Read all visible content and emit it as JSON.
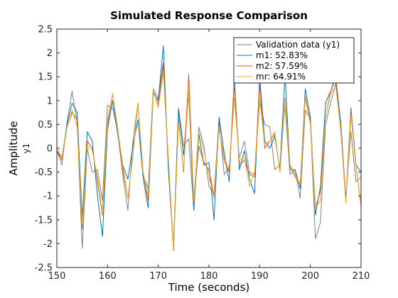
{
  "chart_data": {
    "type": "line",
    "title": "Simulated Response Comparison",
    "xlabel": "Time (seconds)",
    "ylabel": "Amplitude",
    "ylabel_output": "y1",
    "xlim": [
      150,
      210
    ],
    "ylim": [
      -2.5,
      2.5
    ],
    "xticks": [
      150,
      160,
      170,
      180,
      190,
      200,
      210
    ],
    "xtick_labels": [
      "150",
      "160",
      "170",
      "180",
      "190",
      "200",
      "210"
    ],
    "yticks": [
      -2.5,
      -2,
      -1.5,
      -1,
      -0.5,
      0,
      0.5,
      1,
      1.5,
      2,
      2.5
    ],
    "ytick_labels": [
      "-2.5",
      "-2",
      "-1.5",
      "-1",
      "-0.5",
      "0",
      "0.5",
      "1",
      "1.5",
      "2",
      "2.5"
    ],
    "grid": false,
    "legend_position": "top-right",
    "x": [
      150,
      151,
      152,
      153,
      154,
      155,
      156,
      157,
      158,
      159,
      160,
      161,
      162,
      163,
      164,
      165,
      166,
      167,
      168,
      169,
      170,
      171,
      172,
      173,
      174,
      175,
      176,
      177,
      178,
      179,
      180,
      181,
      182,
      183,
      184,
      185,
      186,
      187,
      188,
      189,
      190,
      191,
      192,
      193,
      194,
      195,
      196,
      197,
      198,
      199,
      200,
      201,
      202,
      203,
      204,
      205,
      206,
      207,
      208,
      209,
      210
    ],
    "series": [
      {
        "name": "Validation data (y1)",
        "color": "#7f7f7f",
        "values": [
          -0.05,
          -0.35,
          0.55,
          1.2,
          0.55,
          -2.1,
          0.0,
          -0.5,
          -0.45,
          -1.1,
          0.9,
          0.85,
          0.35,
          -0.55,
          -1.3,
          0.15,
          0.95,
          -0.55,
          -0.85,
          1.25,
          1.05,
          1.8,
          -0.4,
          -2.05,
          0.85,
          0.05,
          0.2,
          -1.25,
          0.45,
          0.05,
          -0.8,
          -0.95,
          0.6,
          -0.55,
          -0.4,
          1.05,
          -0.2,
          0.15,
          -0.5,
          -0.55,
          0.95,
          0.5,
          0.45,
          -0.45,
          -0.35,
          0.9,
          -0.55,
          -0.45,
          -1.05,
          0.8,
          0.6,
          -1.9,
          -1.55,
          0.5,
          0.95,
          1.35,
          0.55,
          -1.05,
          0.35,
          -0.7,
          -0.6
        ]
      },
      {
        "name": "m1: 52.83%",
        "color": "#0072bd",
        "values": [
          -0.05,
          -0.2,
          0.5,
          0.95,
          0.75,
          -1.45,
          0.35,
          0.15,
          -1.0,
          -1.85,
          0.4,
          1.0,
          0.3,
          -0.35,
          -0.65,
          0.05,
          0.6,
          -0.6,
          -1.25,
          1.15,
          1.0,
          2.15,
          -0.45,
          -2.1,
          0.8,
          -0.15,
          1.15,
          -1.3,
          0.3,
          -0.35,
          -0.3,
          -1.5,
          0.65,
          -0.1,
          -0.7,
          1.5,
          -0.45,
          -0.05,
          -0.65,
          -0.95,
          1.5,
          0.15,
          0.0,
          0.25,
          -0.45,
          1.55,
          -0.45,
          -0.45,
          -0.85,
          1.25,
          0.65,
          -1.4,
          -0.8,
          0.95,
          1.2,
          1.5,
          0.5,
          -1.15,
          0.85,
          -0.35,
          -0.5
        ]
      },
      {
        "name": "m2: 57.59%",
        "color": "#d95319",
        "values": [
          -0.05,
          -0.25,
          0.45,
          0.75,
          0.6,
          -1.7,
          0.15,
          0.0,
          -0.7,
          -1.4,
          0.5,
          1.15,
          0.4,
          -0.45,
          -1.05,
          -0.15,
          0.95,
          -0.5,
          -1.1,
          1.25,
          0.9,
          1.75,
          -0.25,
          -2.15,
          0.6,
          -0.5,
          1.55,
          -1.1,
          0.05,
          -0.3,
          -0.45,
          -1.0,
          0.45,
          -0.25,
          -0.5,
          1.35,
          -0.35,
          -0.25,
          -0.55,
          -0.6,
          1.35,
          0.0,
          0.15,
          0.3,
          -0.5,
          1.05,
          -0.35,
          -0.6,
          -0.75,
          1.1,
          0.55,
          -1.25,
          -0.9,
          0.65,
          1.2,
          1.45,
          0.35,
          -1.1,
          0.8,
          -0.4,
          -1.2
        ]
      },
      {
        "name": "mr: 64.91%",
        "color": "#edb120",
        "values": [
          0.0,
          -0.2,
          0.45,
          0.8,
          0.45,
          -1.6,
          0.05,
          -0.05,
          -0.6,
          -1.35,
          0.6,
          1.15,
          0.4,
          -0.35,
          -1.05,
          -0.15,
          0.95,
          -0.5,
          -1.0,
          1.25,
          0.85,
          1.6,
          -0.2,
          -2.1,
          0.55,
          -0.45,
          1.2,
          -1.1,
          0.35,
          -0.05,
          -0.6,
          -1.05,
          0.45,
          -0.2,
          -0.45,
          1.05,
          -0.25,
          -0.2,
          -0.8,
          -0.5,
          1.05,
          0.1,
          0.15,
          0.35,
          -0.5,
          1.0,
          -0.35,
          -0.55,
          -0.75,
          1.05,
          0.5,
          -1.25,
          -1.1,
          0.65,
          1.15,
          1.3,
          0.4,
          -1.15,
          0.7,
          -0.4,
          -1.15
        ]
      }
    ]
  }
}
